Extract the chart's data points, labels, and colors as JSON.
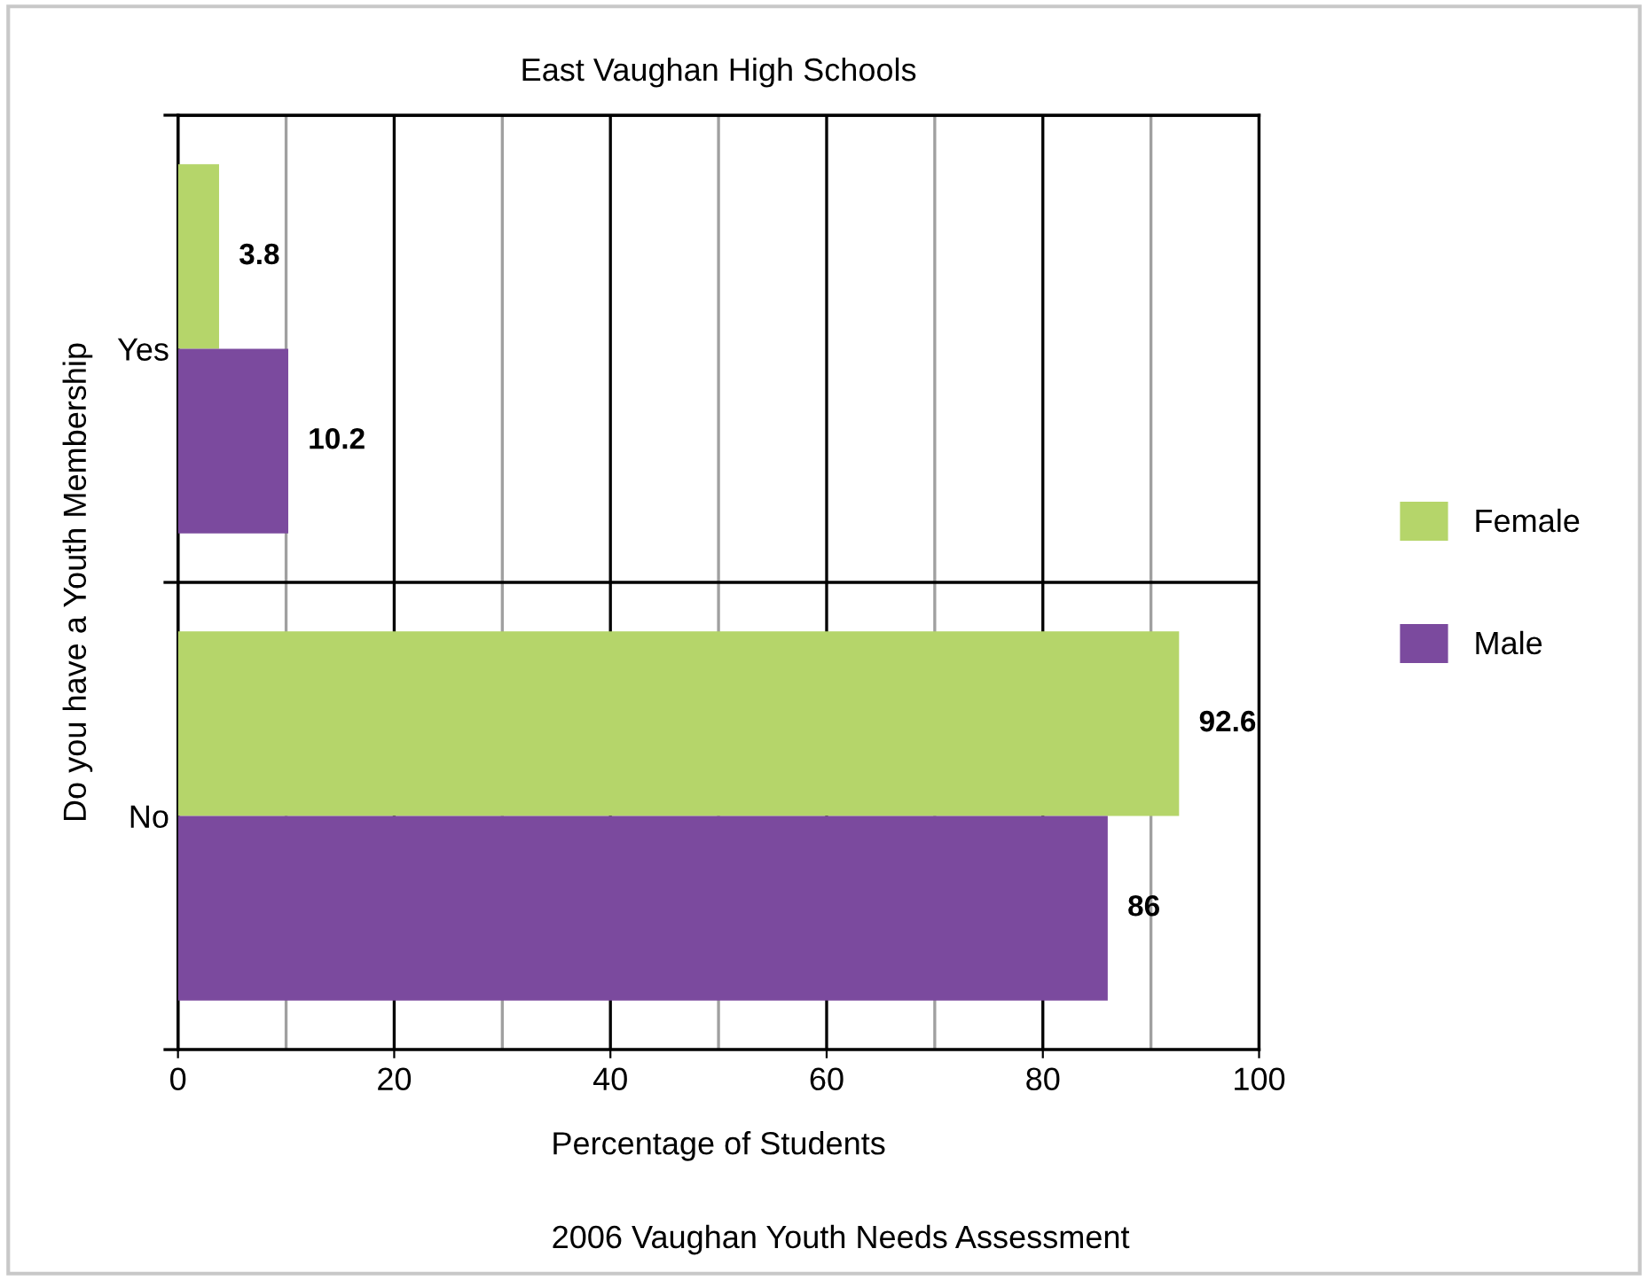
{
  "chart_data": {
    "type": "bar",
    "orientation": "horizontal",
    "title": "East Vaughan High Schools",
    "xlabel": "Percentage of Students",
    "ylabel": "Do you have a Youth Membership",
    "categories": [
      "Yes",
      "No"
    ],
    "series": [
      {
        "name": "Female",
        "color": "#b5d56a",
        "values": [
          3.8,
          92.6
        ]
      },
      {
        "name": "Male",
        "color": "#7b4a9e",
        "values": [
          10.2,
          86
        ]
      }
    ],
    "xlim": [
      0,
      100
    ],
    "xticks": [
      0,
      {
        "value": 10,
        "label": null
      },
      20,
      {
        "value": 30,
        "label": null
      },
      40,
      {
        "value": 50,
        "label": null
      },
      60,
      {
        "value": 70,
        "label": null
      },
      80,
      {
        "value": 90,
        "label": null
      },
      100
    ],
    "grid": "x",
    "legend": "right",
    "data_labels": true,
    "annotations": [
      "2006 Vaughan Youth Needs Assessment"
    ]
  }
}
